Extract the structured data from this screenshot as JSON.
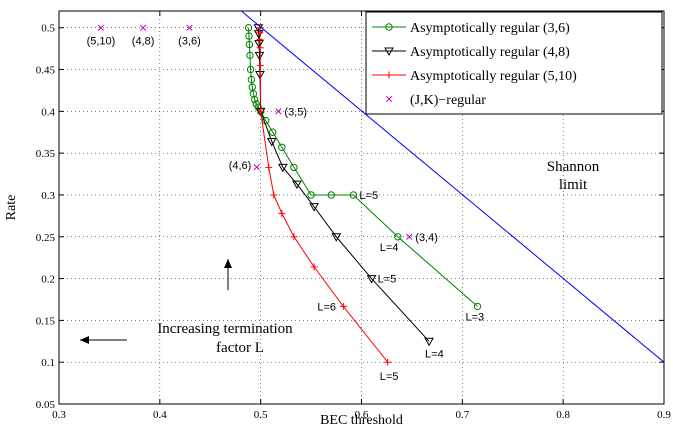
{
  "chart_data": {
    "type": "line",
    "xlabel": "BEC threshold",
    "ylabel": "Rate",
    "xlim": [
      0.3,
      0.9
    ],
    "ylim": [
      0.05,
      0.52
    ],
    "xticks": [
      0.3,
      0.4,
      0.5,
      0.6,
      0.7,
      0.8,
      0.9
    ],
    "xtick_labels": [
      "0.3",
      "0.4",
      "0.5",
      "0.6",
      "0.7",
      "0.8",
      "0.9"
    ],
    "yticks": [
      0.05,
      0.1,
      0.15,
      0.2,
      0.25,
      0.3,
      0.35,
      0.4,
      0.45,
      0.5
    ],
    "ytick_labels": [
      "0.05",
      "0.1",
      "0.15",
      "0.2",
      "0.25",
      "0.3",
      "0.35",
      "0.4",
      "0.45",
      "0.5"
    ],
    "grid": "dotted",
    "legend_position": "top-right",
    "series": [
      {
        "name": "Asymptotically regular (3,6)",
        "color": "#008000",
        "marker": "circle",
        "x": [
          0.488,
          0.4884,
          0.4888,
          0.4894,
          0.49,
          0.4908,
          0.4917,
          0.4928,
          0.4941,
          0.4956,
          0.4975,
          0.5,
          0.505,
          0.512,
          0.521,
          0.533,
          0.55,
          0.57,
          0.592,
          0.636,
          0.715
        ],
        "y": [
          0.5,
          0.49,
          0.48,
          0.467,
          0.45,
          0.438,
          0.429,
          0.421,
          0.414,
          0.409,
          0.405,
          0.4,
          0.389,
          0.375,
          0.357,
          0.333,
          0.3,
          0.3,
          0.3,
          0.25,
          0.1667
        ]
      },
      {
        "name": "Asymptotically regular (4,8)",
        "color": "#000000",
        "marker": "triangle-down",
        "x": [
          0.4977,
          0.498,
          0.4984,
          0.4988,
          0.4993,
          0.5,
          0.511,
          0.522,
          0.536,
          0.553,
          0.575,
          0.61,
          0.667
        ],
        "y": [
          0.5,
          0.493,
          0.481,
          0.467,
          0.444,
          0.4,
          0.364,
          0.333,
          0.313,
          0.286,
          0.25,
          0.2,
          0.125
        ],
        "point_labels": [
          {
            "x": 0.61,
            "y": 0.2,
            "text": "L=5"
          },
          {
            "x": 0.667,
            "y": 0.125,
            "text": "L=4"
          }
        ]
      },
      {
        "name": "Asymptotically regular (5,10)",
        "color": "#ff0000",
        "marker": "plus",
        "x": [
          0.4991,
          0.4992,
          0.4993,
          0.4995,
          0.4997,
          0.5,
          0.508,
          0.513,
          0.521,
          0.533,
          0.553,
          0.582,
          0.626
        ],
        "y": [
          0.5,
          0.494,
          0.486,
          0.476,
          0.455,
          0.4,
          0.333,
          0.3,
          0.278,
          0.25,
          0.214,
          0.1667,
          0.1
        ],
        "point_labels": [
          {
            "x": 0.582,
            "y": 0.1667,
            "text": "L=6"
          },
          {
            "x": 0.626,
            "y": 0.1,
            "text": "L=5"
          }
        ]
      },
      {
        "name": "(J,K)−regular",
        "color": "#bf00bf",
        "marker": "x",
        "x": [
          0.3416,
          0.3834,
          0.4294,
          0.5176,
          0.4961,
          0.6474
        ],
        "y": [
          0.5,
          0.5,
          0.5,
          0.4,
          0.3333,
          0.25
        ],
        "point_labels": [
          {
            "x": 0.3416,
            "y": 0.5,
            "text": "(5,10)"
          },
          {
            "x": 0.3834,
            "y": 0.5,
            "text": "(4,8)"
          },
          {
            "x": 0.4294,
            "y": 0.5,
            "text": "(3,6)"
          },
          {
            "x": 0.5176,
            "y": 0.4,
            "text": "(3,5)"
          },
          {
            "x": 0.4961,
            "y": 0.3333,
            "text": "(4,6)"
          },
          {
            "x": 0.6474,
            "y": 0.25,
            "text": "(3,4)"
          }
        ]
      },
      {
        "name": "Shannon limit",
        "color": "#0000ff",
        "marker": "none",
        "x": [
          0.4808,
          0.9
        ],
        "y": [
          0.52,
          0.1
        ]
      }
    ],
    "green_point_labels": [
      {
        "x": 0.592,
        "y": 0.3,
        "text": "L=5"
      },
      {
        "x": 0.636,
        "y": 0.25,
        "text": "L=4"
      },
      {
        "x": 0.715,
        "y": 0.1667,
        "text": "L=3"
      }
    ],
    "annotations": {
      "shannon_line1": "Shannon",
      "shannon_line2": "limit",
      "termination_line1": "Increasing termination",
      "termination_line2": "factor L"
    }
  }
}
